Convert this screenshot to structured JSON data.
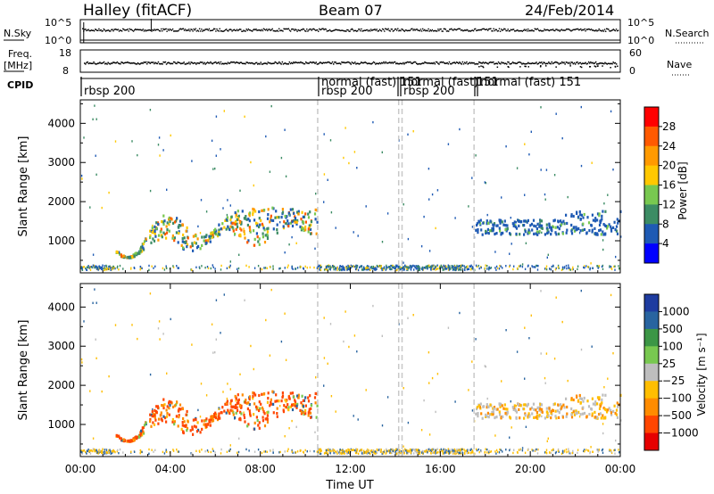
{
  "header": {
    "left_title": "Halley (fitACF)",
    "center_title": "Beam 07",
    "date": "24/Feb/2014"
  },
  "chart_data": [
    {
      "type": "line",
      "panel": "nsky-nsearch",
      "left_label": "N.Sky",
      "right_label": "N.Search",
      "left_ticks": [
        "10^5",
        "10^0"
      ],
      "right_ticks": [
        "10^5",
        "10^0"
      ]
    },
    {
      "type": "line",
      "panel": "freq-nave",
      "left_label_line1": "Freq.",
      "left_label_line2": "[MHz]",
      "right_label": "Nave",
      "left_ticks": [
        18,
        8
      ],
      "right_ticks": [
        60,
        0
      ]
    },
    {
      "type": "table",
      "panel": "cpid",
      "label": "CPID",
      "segments": [
        {
          "start_h": 0.0,
          "label": "rbsp 200",
          "row": 1
        },
        {
          "start_h": 10.55,
          "label": "normal (fast)",
          "row": 0
        },
        {
          "start_h": 10.55,
          "label": "rbsp 200",
          "row": 1
        },
        {
          "start_h": 14.15,
          "label": "151",
          "row": 0
        },
        {
          "start_h": 14.3,
          "label": "normal (fast)",
          "row": 0
        },
        {
          "start_h": 14.3,
          "label": "rbsp 200",
          "row": 1
        },
        {
          "start_h": 17.5,
          "label": "151",
          "row": 0
        },
        {
          "start_h": 17.6,
          "label": "normal (fast)  151",
          "row": 0
        }
      ]
    },
    {
      "type": "heatmap",
      "panel": "power",
      "ylabel": "Slant Range [km]",
      "xlabel": "",
      "yticks": [
        1000,
        2000,
        3000,
        4000
      ],
      "ylim": [
        180,
        4600
      ],
      "colorbar": {
        "label": "Power [dB]",
        "ticks": [
          "28",
          "24",
          "20",
          "16",
          "12",
          "8",
          "4"
        ],
        "colors": [
          "#ff0000",
          "#ff5a00",
          "#ff9a00",
          "#ffc800",
          "#78c850",
          "#3c8c64",
          "#1e5ab4",
          "#0000ff"
        ]
      }
    },
    {
      "type": "heatmap",
      "panel": "velocity",
      "ylabel": "Slant Range [km]",
      "xlabel": "Time UT",
      "yticks": [
        1000,
        2000,
        3000,
        4000
      ],
      "ylim": [
        180,
        4600
      ],
      "xticks": [
        "00:00",
        "04:00",
        "08:00",
        "12:00",
        "16:00",
        "20:00",
        "00:00"
      ],
      "colorbar": {
        "label": "Velocity  [m s⁻¹]",
        "ticks": [
          "1000",
          "500",
          "100",
          "25",
          "−25",
          "−100",
          "−500",
          "−1000"
        ],
        "colors": [
          "#1e3ca0",
          "#2864a0",
          "#3c9646",
          "#78c850",
          "#bebebe",
          "#ffbe00",
          "#ff8c00",
          "#ff4600",
          "#e60000"
        ]
      }
    }
  ]
}
